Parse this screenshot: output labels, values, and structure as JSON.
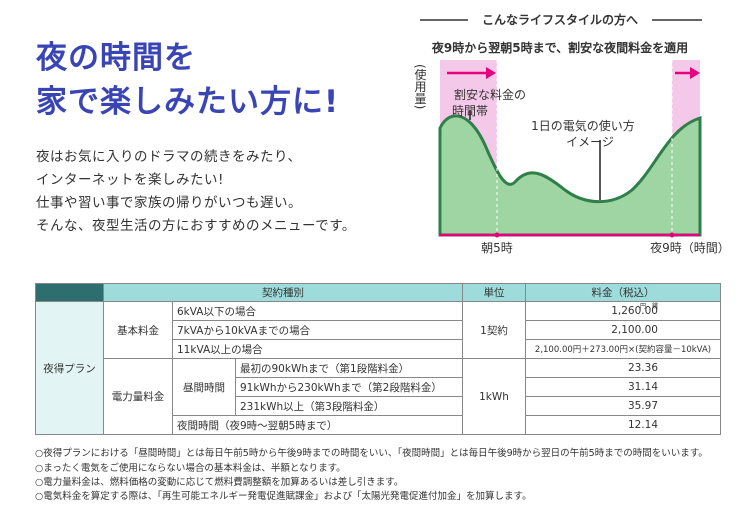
{
  "header": {
    "title_lines": [
      "夜の時間を",
      "家で楽しみたい方に!"
    ],
    "body_lines": [
      "夜はお気に入りのドラマの続きをみたり、",
      "インターネットを楽しみたい!",
      "仕事や習い事で家族の帰りがいつも遅い。",
      "そんな、夜型生活の方におすすめのメニューです。"
    ]
  },
  "diagram": {
    "heading": "こんなライフスタイルの方へ",
    "subtitle": "夜9時から翌朝5時まで、割安な夜間料金を適用",
    "y_axis_label": "(使用量)",
    "cheap_label_lines": [
      "割安な料金の",
      "時間帯"
    ],
    "usage_label_lines": [
      "1日の電気の使い方",
      "イメージ"
    ],
    "x_labels": [
      "朝5時",
      "夜9時（時間）"
    ]
  },
  "table": {
    "header": [
      "契約種別",
      "単位",
      "料金（税込）"
    ],
    "plan": "夜得プラン",
    "price_unit_note": "円　銭",
    "basic": {
      "label": "基本料金",
      "unit": "1契約",
      "rows": [
        {
          "item": "6kVA以下の場合",
          "price": "1,260.00"
        },
        {
          "item": "7kVAから10kVAまでの場合",
          "price": "2,100.00"
        },
        {
          "item": "11kVA以上の場合",
          "price": "2,100.00円＋273.00円×(契約容量－10kVA)"
        }
      ]
    },
    "energy": {
      "label": "電力量料金",
      "unit": "1kWh",
      "period": "昼間時間",
      "rows": [
        {
          "item": "最初の90kWhまで（第1段階料金）",
          "price": "23.36"
        },
        {
          "item": "91kWhから230kWhまで（第2段階料金）",
          "price": "31.14"
        },
        {
          "item": "231kWh以上（第3段階料金）",
          "price": "35.97"
        }
      ],
      "night": {
        "item": "夜間時間（夜9時～翌朝5時まで）",
        "price": "12.14"
      }
    }
  },
  "notes": [
    "○夜得プランにおける「昼間時間」とは毎日午前5時から午後9時までの時間をいい、「夜間時間」とは毎日午後9時から翌日の午前5時までの時間をいいます。",
    "○まったく電気をご使用にならない場合の基本料金は、半額となります。",
    "○電力量料金は、燃料価格の変動に応じて燃料費調整額を加算あるいは差し引きます。",
    "○電気料金を算定する際は、「再生可能エネルギー発電促進賦課金」および「太陽光発電促進付加金」を加算します。"
  ]
}
